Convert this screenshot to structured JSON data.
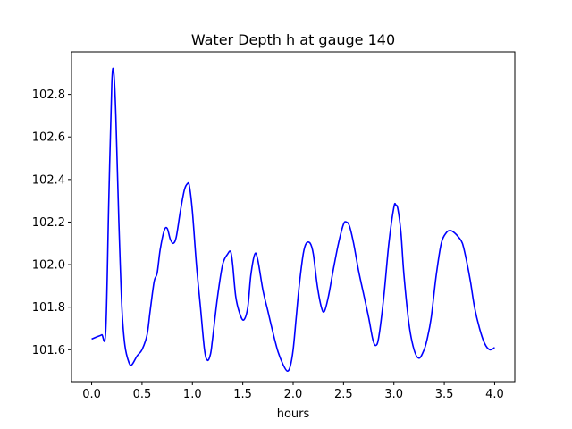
{
  "chart_data": {
    "type": "line",
    "title": "Water Depth h at gauge 140",
    "xlabel": "hours",
    "ylabel": "",
    "xlim": [
      -0.2,
      4.2
    ],
    "ylim": [
      101.45,
      103.0
    ],
    "xticks": [
      0.0,
      0.5,
      1.0,
      1.5,
      2.0,
      2.5,
      3.0,
      3.5,
      4.0
    ],
    "xtick_labels": [
      "0.0",
      "0.5",
      "1.0",
      "1.5",
      "2.0",
      "2.5",
      "3.0",
      "3.5",
      "4.0"
    ],
    "yticks": [
      101.6,
      101.8,
      102.0,
      102.2,
      102.4,
      102.6,
      102.8
    ],
    "ytick_labels": [
      "101.6",
      "101.8",
      "102.0",
      "102.2",
      "102.4",
      "102.6",
      "102.8"
    ],
    "grid": false,
    "line_color": "#0000ff",
    "series": [
      {
        "x": [
          0.0,
          0.05,
          0.1,
          0.14,
          0.17,
          0.2,
          0.22,
          0.24,
          0.27,
          0.3,
          0.33,
          0.37,
          0.4,
          0.45,
          0.5,
          0.55,
          0.58,
          0.62,
          0.65,
          0.68,
          0.72,
          0.75,
          0.78,
          0.81,
          0.84,
          0.88,
          0.92,
          0.95,
          0.97,
          1.0,
          1.04,
          1.08,
          1.12,
          1.15,
          1.18,
          1.2,
          1.25,
          1.3,
          1.35,
          1.38,
          1.4,
          1.43,
          1.47,
          1.51,
          1.55,
          1.58,
          1.62,
          1.65,
          1.7,
          1.75,
          1.8,
          1.85,
          1.9,
          1.94,
          1.97,
          2.0,
          2.03,
          2.06,
          2.1,
          2.13,
          2.17,
          2.2,
          2.24,
          2.28,
          2.31,
          2.35,
          2.4,
          2.45,
          2.5,
          2.53,
          2.56,
          2.6,
          2.65,
          2.7,
          2.75,
          2.79,
          2.82,
          2.85,
          2.9,
          2.95,
          3.0,
          3.02,
          3.04,
          3.07,
          3.1,
          3.15,
          3.2,
          3.25,
          3.3,
          3.33,
          3.37,
          3.42,
          3.47,
          3.52,
          3.56,
          3.6,
          3.64,
          3.68,
          3.72,
          3.76,
          3.8,
          3.85,
          3.9,
          3.95,
          4.0
        ],
        "y": [
          101.65,
          101.66,
          101.67,
          101.69,
          102.3,
          102.85,
          102.9,
          102.7,
          102.2,
          101.8,
          101.62,
          101.54,
          101.53,
          101.57,
          101.6,
          101.67,
          101.78,
          101.92,
          101.96,
          102.07,
          102.16,
          102.17,
          102.12,
          102.1,
          102.13,
          102.25,
          102.35,
          102.38,
          102.37,
          102.25,
          102.0,
          101.8,
          101.6,
          101.55,
          101.58,
          101.65,
          101.85,
          102.0,
          102.05,
          102.06,
          102.0,
          101.85,
          101.77,
          101.74,
          101.8,
          101.95,
          102.05,
          102.02,
          101.88,
          101.78,
          101.68,
          101.59,
          101.53,
          101.5,
          101.52,
          101.6,
          101.75,
          101.9,
          102.05,
          102.1,
          102.1,
          102.05,
          101.9,
          101.8,
          101.78,
          101.85,
          101.98,
          102.1,
          102.19,
          102.2,
          102.18,
          102.1,
          101.97,
          101.86,
          101.75,
          101.65,
          101.62,
          101.66,
          101.85,
          102.1,
          102.27,
          102.28,
          102.26,
          102.15,
          101.95,
          101.72,
          101.6,
          101.56,
          101.6,
          101.65,
          101.75,
          101.95,
          102.1,
          102.15,
          102.16,
          102.15,
          102.13,
          102.1,
          102.02,
          101.92,
          101.8,
          101.7,
          101.63,
          101.6,
          101.61
        ]
      }
    ]
  }
}
